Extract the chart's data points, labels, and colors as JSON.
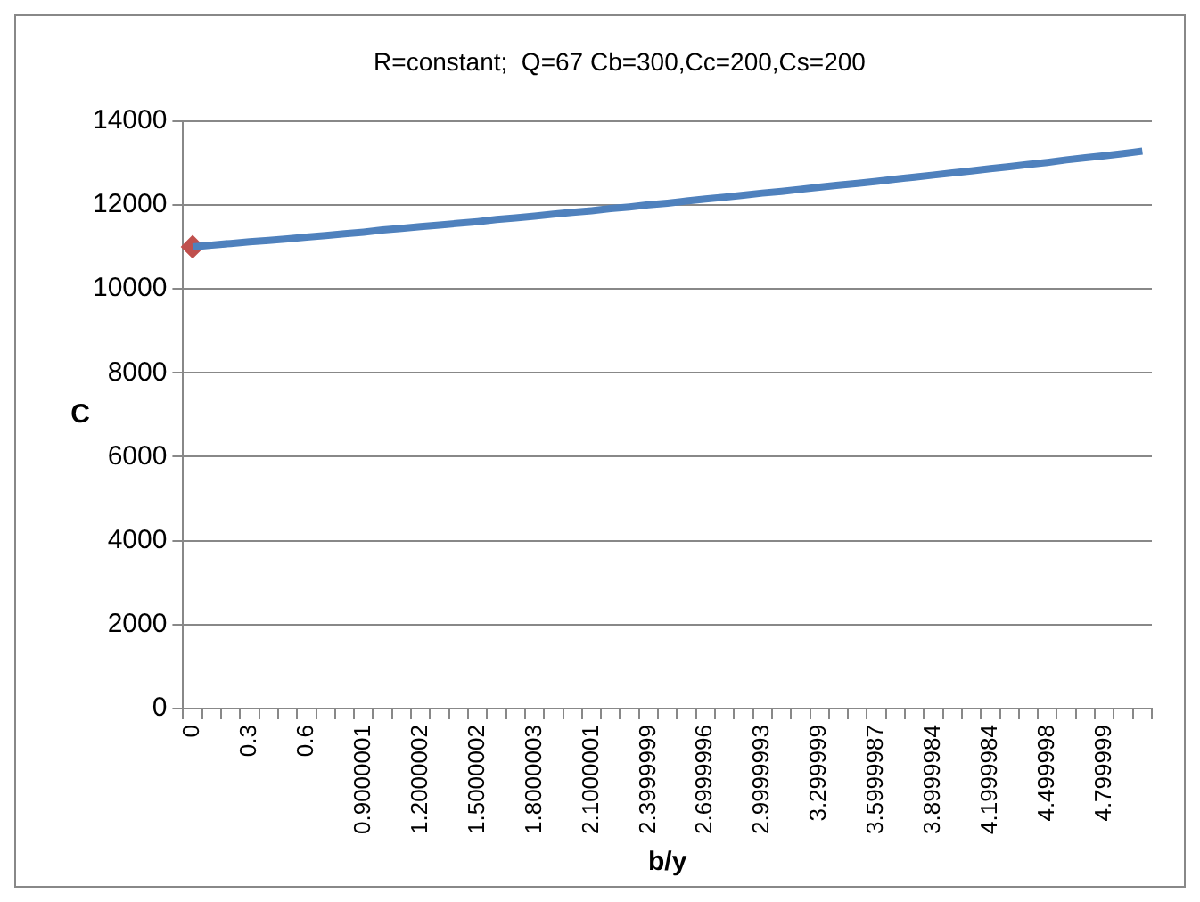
{
  "chart_data": {
    "type": "line",
    "title": "R=constant;  Q=67 Cb=300,Cc=200,Cs=200",
    "xlabel": "b/y",
    "ylabel": "C",
    "categories": [
      "0",
      null,
      null,
      "0.3",
      null,
      null,
      "0.6",
      null,
      null,
      "0.9000001",
      null,
      null,
      "1.2000002",
      null,
      null,
      "1.5000002",
      null,
      null,
      "1.8000003",
      null,
      null,
      "2.1000001",
      null,
      null,
      "2.3999999",
      null,
      null,
      "2.6999996",
      null,
      null,
      "2.9999993",
      null,
      null,
      "3.299999",
      null,
      null,
      "3.5999987",
      null,
      null,
      "3.8999984",
      null,
      null,
      "4.1999984",
      null,
      null,
      "4.499998",
      null,
      null,
      "4.799999",
      null,
      null
    ],
    "series": [
      {
        "color": "#4f81bd",
        "marker": "none",
        "values": [
          11000,
          11040,
          11080,
          11120,
          11150,
          11190,
          11230,
          11270,
          11310,
          11350,
          11400,
          11440,
          11480,
          11520,
          11560,
          11600,
          11650,
          11690,
          11730,
          11780,
          11820,
          11860,
          11910,
          11950,
          12000,
          12040,
          12090,
          12140,
          12180,
          12230,
          12280,
          12320,
          12370,
          12420,
          12470,
          12510,
          12560,
          12610,
          12660,
          12710,
          12760,
          12810,
          12860,
          12910,
          12960,
          13010,
          13070,
          13120,
          13170,
          13220,
          13280
        ]
      },
      {
        "color": "#c0504d",
        "marker": "diamond",
        "values": [
          11000,
          null,
          null,
          null,
          null,
          null,
          null,
          null,
          null,
          null,
          null,
          null,
          null,
          null,
          null,
          null,
          null,
          null,
          null,
          null,
          null,
          null,
          null,
          null,
          null,
          null,
          null,
          null,
          null,
          null,
          null,
          null,
          null,
          null,
          null,
          null,
          null,
          null,
          null,
          null,
          null,
          null,
          null,
          null,
          null,
          null,
          null,
          null,
          null,
          null,
          null
        ]
      }
    ],
    "ylim": [
      0,
      14000
    ],
    "yticks": [
      0,
      2000,
      4000,
      6000,
      8000,
      10000,
      12000,
      14000
    ],
    "grid": "y",
    "legend": false
  }
}
